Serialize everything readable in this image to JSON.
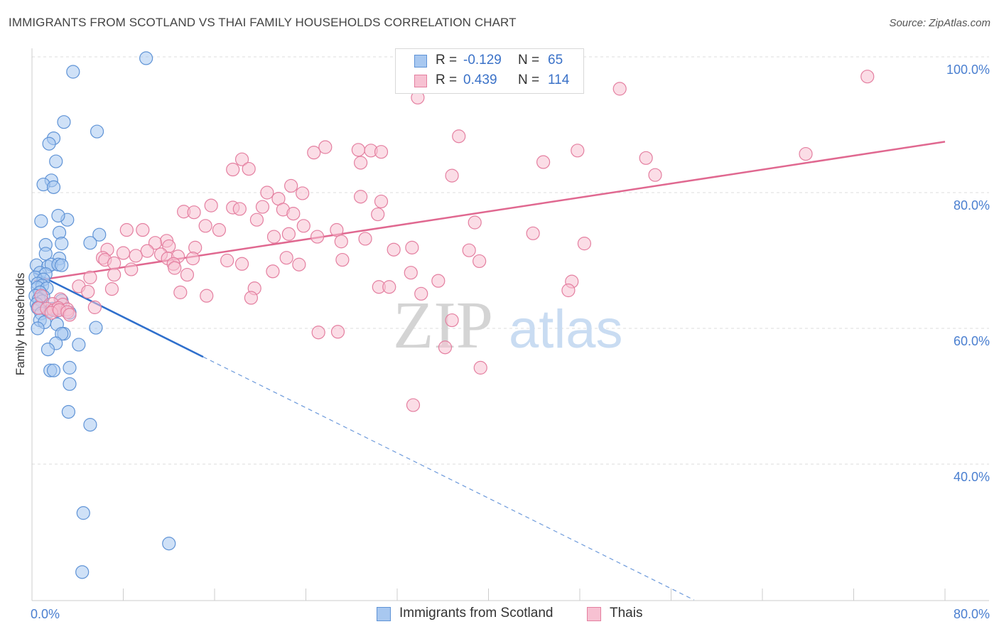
{
  "title": "IMMIGRANTS FROM SCOTLAND VS THAI FAMILY HOUSEHOLDS CORRELATION CHART",
  "source": "Source: ZipAtlas.com",
  "watermark": {
    "zip": "ZIP",
    "atlas": "atlas"
  },
  "legend": {
    "series1": {
      "r_label": "R =",
      "r_value": "-0.129",
      "n_label": "N =",
      "n_value": "65"
    },
    "series2": {
      "r_label": "R =",
      "r_value": "0.439",
      "n_label": "N =",
      "n_value": "114"
    }
  },
  "colors": {
    "blue_fill": "#a8c8f0",
    "blue_stroke": "#5f93d6",
    "blue_line": "#2f6fcc",
    "pink_fill": "#f7c1d2",
    "pink_stroke": "#e47fa0",
    "pink_line": "#e06890",
    "grid": "#dcdcdc",
    "tick_text": "#4a7fd0"
  },
  "chart_data": {
    "type": "scatter",
    "xlabel": "",
    "ylabel": "Family Households",
    "xlim": [
      0,
      80
    ],
    "ylim": [
      20,
      102
    ],
    "x_tick_labels": [
      {
        "value": 0,
        "label": "0.0%"
      },
      {
        "value": 80,
        "label": "80.0%"
      }
    ],
    "y_tick_labels": [
      {
        "value": 100,
        "label": "100.0%"
      },
      {
        "value": 80,
        "label": "80.0%"
      },
      {
        "value": 60,
        "label": "60.0%"
      },
      {
        "value": 40,
        "label": "40.0%"
      }
    ],
    "grid": true,
    "legend_position": "top-center",
    "series": [
      {
        "name": "Immigrants from Scotland",
        "color": "blue",
        "R": -0.129,
        "N": 65,
        "trend": {
          "solid_x": [
            0.2,
            15.0
          ],
          "solid_y": [
            68.2,
            55.8
          ],
          "dashed_x": [
            15.0,
            58.0
          ],
          "dashed_y": [
            55.8,
            20.0
          ]
        },
        "points": [
          [
            10.0,
            99.8
          ],
          [
            3.6,
            97.8
          ],
          [
            2.8,
            90.4
          ],
          [
            5.7,
            89.0
          ],
          [
            1.9,
            88.0
          ],
          [
            1.5,
            87.2
          ],
          [
            2.1,
            84.6
          ],
          [
            1.7,
            81.8
          ],
          [
            1.0,
            81.2
          ],
          [
            1.9,
            80.8
          ],
          [
            3.1,
            76.0
          ],
          [
            2.3,
            76.6
          ],
          [
            0.8,
            75.8
          ],
          [
            2.4,
            74.1
          ],
          [
            5.9,
            73.8
          ],
          [
            5.1,
            72.6
          ],
          [
            1.2,
            72.3
          ],
          [
            2.6,
            72.5
          ],
          [
            1.2,
            71.0
          ],
          [
            2.4,
            70.3
          ],
          [
            0.4,
            69.3
          ],
          [
            1.4,
            69.1
          ],
          [
            1.7,
            69.4
          ],
          [
            2.3,
            69.4
          ],
          [
            2.6,
            69.3
          ],
          [
            0.7,
            68.2
          ],
          [
            1.2,
            68.0
          ],
          [
            0.3,
            67.5
          ],
          [
            1.0,
            67.2
          ],
          [
            0.5,
            66.6
          ],
          [
            0.9,
            66.3
          ],
          [
            0.5,
            66.0
          ],
          [
            1.3,
            65.9
          ],
          [
            0.7,
            65.3
          ],
          [
            0.3,
            64.8
          ],
          [
            1.0,
            64.7
          ],
          [
            0.6,
            64.3
          ],
          [
            0.9,
            64.0
          ],
          [
            2.6,
            64.1
          ],
          [
            0.4,
            63.6
          ],
          [
            0.5,
            63.0
          ],
          [
            1.5,
            62.5
          ],
          [
            2.2,
            62.6
          ],
          [
            0.8,
            62.2
          ],
          [
            1.8,
            62.9
          ],
          [
            3.3,
            62.3
          ],
          [
            0.7,
            61.2
          ],
          [
            1.1,
            60.9
          ],
          [
            2.2,
            60.6
          ],
          [
            5.6,
            60.1
          ],
          [
            0.5,
            60.0
          ],
          [
            2.8,
            59.2
          ],
          [
            2.6,
            59.2
          ],
          [
            2.1,
            57.8
          ],
          [
            4.1,
            57.6
          ],
          [
            1.4,
            56.9
          ],
          [
            3.3,
            54.2
          ],
          [
            1.6,
            53.8
          ],
          [
            1.9,
            53.8
          ],
          [
            3.3,
            51.8
          ],
          [
            3.2,
            47.7
          ],
          [
            5.1,
            45.8
          ],
          [
            4.5,
            32.8
          ],
          [
            12.0,
            28.3
          ],
          [
            4.4,
            24.1
          ]
        ]
      },
      {
        "name": "Thais",
        "color": "pink",
        "R": 0.439,
        "N": 114,
        "trend": {
          "solid_x": [
            0.2,
            80.0
          ],
          "solid_y": [
            67.0,
            87.5
          ]
        },
        "points": [
          [
            73.2,
            97.1
          ],
          [
            51.5,
            95.3
          ],
          [
            33.8,
            94.0
          ],
          [
            37.4,
            88.3
          ],
          [
            25.7,
            86.7
          ],
          [
            24.7,
            85.9
          ],
          [
            28.6,
            86.3
          ],
          [
            29.7,
            86.2
          ],
          [
            30.6,
            86.0
          ],
          [
            47.8,
            86.2
          ],
          [
            67.8,
            85.7
          ],
          [
            53.8,
            85.1
          ],
          [
            18.4,
            84.9
          ],
          [
            28.8,
            84.4
          ],
          [
            44.8,
            84.5
          ],
          [
            17.6,
            83.4
          ],
          [
            19.0,
            83.5
          ],
          [
            36.8,
            82.5
          ],
          [
            54.6,
            82.6
          ],
          [
            22.7,
            81.0
          ],
          [
            20.6,
            80.0
          ],
          [
            23.7,
            79.9
          ],
          [
            28.8,
            79.4
          ],
          [
            21.6,
            79.1
          ],
          [
            30.6,
            78.7
          ],
          [
            15.7,
            78.1
          ],
          [
            17.6,
            77.8
          ],
          [
            20.2,
            77.9
          ],
          [
            18.2,
            77.6
          ],
          [
            22.0,
            77.5
          ],
          [
            13.3,
            77.2
          ],
          [
            14.2,
            77.1
          ],
          [
            30.3,
            76.8
          ],
          [
            22.9,
            76.9
          ],
          [
            19.7,
            76.0
          ],
          [
            38.8,
            75.6
          ],
          [
            15.2,
            75.1
          ],
          [
            23.8,
            75.1
          ],
          [
            16.4,
            74.5
          ],
          [
            8.3,
            74.5
          ],
          [
            9.7,
            74.5
          ],
          [
            26.7,
            74.5
          ],
          [
            22.5,
            73.9
          ],
          [
            25.0,
            73.5
          ],
          [
            43.9,
            74.0
          ],
          [
            21.2,
            73.5
          ],
          [
            11.8,
            72.9
          ],
          [
            10.8,
            72.6
          ],
          [
            29.2,
            73.2
          ],
          [
            27.1,
            72.8
          ],
          [
            48.4,
            72.5
          ],
          [
            6.6,
            71.6
          ],
          [
            12.0,
            72.1
          ],
          [
            14.3,
            71.9
          ],
          [
            33.3,
            71.9
          ],
          [
            31.7,
            71.6
          ],
          [
            38.3,
            71.5
          ],
          [
            8.0,
            71.1
          ],
          [
            10.1,
            71.4
          ],
          [
            6.2,
            70.4
          ],
          [
            9.1,
            70.7
          ],
          [
            11.3,
            70.9
          ],
          [
            11.9,
            70.3
          ],
          [
            12.8,
            70.6
          ],
          [
            14.1,
            70.3
          ],
          [
            22.3,
            70.4
          ],
          [
            6.4,
            70.1
          ],
          [
            17.1,
            70.0
          ],
          [
            27.2,
            70.1
          ],
          [
            39.2,
            69.9
          ],
          [
            7.2,
            69.6
          ],
          [
            12.4,
            69.5
          ],
          [
            18.4,
            69.5
          ],
          [
            23.4,
            69.4
          ],
          [
            12.5,
            68.9
          ],
          [
            8.7,
            68.7
          ],
          [
            21.1,
            68.4
          ],
          [
            33.2,
            68.2
          ],
          [
            7.2,
            67.9
          ],
          [
            13.6,
            67.9
          ],
          [
            5.1,
            67.5
          ],
          [
            35.6,
            67.0
          ],
          [
            47.3,
            66.9
          ],
          [
            4.1,
            66.2
          ],
          [
            30.4,
            66.1
          ],
          [
            31.3,
            66.1
          ],
          [
            19.5,
            65.9
          ],
          [
            7.0,
            65.8
          ],
          [
            47.0,
            65.6
          ],
          [
            4.9,
            65.4
          ],
          [
            13.0,
            65.3
          ],
          [
            15.3,
            64.8
          ],
          [
            34.1,
            65.1
          ],
          [
            19.2,
            64.5
          ],
          [
            2.5,
            64.3
          ],
          [
            1.8,
            63.6
          ],
          [
            2.7,
            63.5
          ],
          [
            0.6,
            63.0
          ],
          [
            1.3,
            62.9
          ],
          [
            1.9,
            62.7
          ],
          [
            2.3,
            63.0
          ],
          [
            3.1,
            62.8
          ],
          [
            5.5,
            63.1
          ],
          [
            1.7,
            62.3
          ],
          [
            2.4,
            62.7
          ],
          [
            3.1,
            62.4
          ],
          [
            3.3,
            62.0
          ],
          [
            36.8,
            61.2
          ],
          [
            25.1,
            59.4
          ],
          [
            26.8,
            59.5
          ],
          [
            36.2,
            57.2
          ],
          [
            39.3,
            54.2
          ],
          [
            33.4,
            48.7
          ],
          [
            0.8,
            64.8
          ]
        ]
      }
    ]
  },
  "bottom_legend": {
    "series1_label": "Immigrants from Scotland",
    "series2_label": "Thais"
  }
}
